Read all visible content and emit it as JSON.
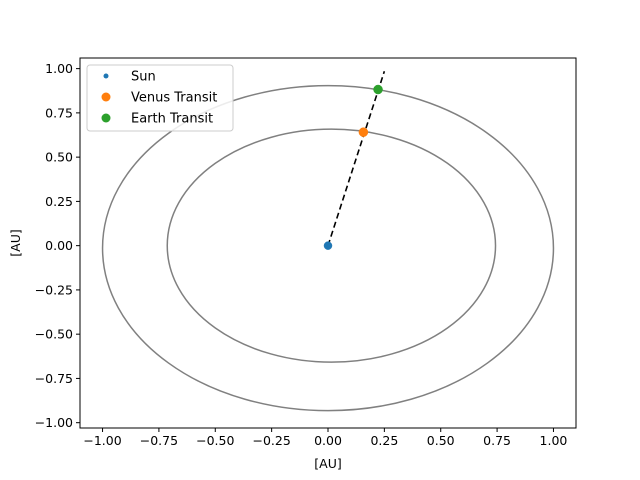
{
  "chart_data": {
    "type": "scatter",
    "title": "",
    "xlabel": "[AU]",
    "ylabel": "[AU]",
    "xlim": [
      -1.1,
      1.1
    ],
    "ylim": [
      -1.03,
      1.06
    ],
    "xticks": [
      -1.0,
      -0.75,
      -0.5,
      -0.25,
      0.0,
      0.25,
      0.5,
      0.75,
      1.0
    ],
    "xtick_labels": [
      "−1.00",
      "−0.75",
      "−0.50",
      "−0.25",
      "0.00",
      "0.25",
      "0.50",
      "0.75",
      "1.00"
    ],
    "yticks": [
      1.0,
      0.75,
      0.5,
      0.25,
      0.0,
      -0.25,
      -0.5,
      -0.75,
      -1.0
    ],
    "ytick_labels": [
      "1.00",
      "0.75",
      "0.50",
      "0.25",
      "0.00",
      "−0.25",
      "−0.50",
      "−0.75",
      "−1.00"
    ],
    "grid": false,
    "legend_position": "top-left",
    "orbits": [
      {
        "center_x": 0.015,
        "center_y": 0.0,
        "semi_axis_x": 0.728,
        "semi_axis_y": 0.658,
        "color": "#808080"
      },
      {
        "center_x": 0.0,
        "center_y": -0.014,
        "semi_axis_x": 1.0,
        "semi_axis_y": 0.918,
        "color": "#808080"
      }
    ],
    "transit_line": {
      "x": [
        0.0,
        0.25
      ],
      "y": [
        0.0,
        0.985
      ],
      "color": "#000000",
      "style": "dashed"
    },
    "series": [
      {
        "name": "Sun",
        "x": [
          0.0
        ],
        "y": [
          0.0
        ],
        "color": "#1f77b4",
        "marker": "small-dot"
      },
      {
        "name": "Venus Transit",
        "x": [
          0.157
        ],
        "y": [
          0.641
        ],
        "color": "#ff7f0e",
        "marker": "dot"
      },
      {
        "name": "Earth Transit",
        "x": [
          0.222
        ],
        "y": [
          0.882
        ],
        "color": "#2ca02c",
        "marker": "dot"
      }
    ]
  }
}
